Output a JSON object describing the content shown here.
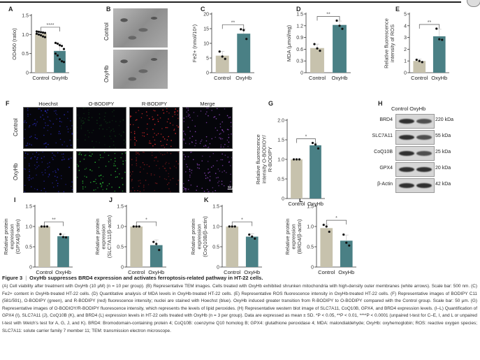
{
  "panels": {
    "A": "A",
    "B": "B",
    "C": "C",
    "D": "D",
    "E": "E",
    "F": "F",
    "G": "G",
    "H": "H",
    "I": "I",
    "J": "J",
    "K": "K",
    "L": "L"
  },
  "tem": {
    "row_labels": [
      "Control",
      "OxyHb"
    ]
  },
  "fluorescence": {
    "columns": [
      "Hoechst",
      "O-BODIPY",
      "R-BODIPY",
      "Merge"
    ],
    "row_labels": [
      "Control",
      "OxyHb"
    ],
    "scale_bar": "50 μm",
    "colors": [
      "#3a3aff",
      "#2fcf3a",
      "#ff3030",
      "#c060ff"
    ]
  },
  "western": {
    "header": "Control OxyHb",
    "rows": [
      {
        "protein": "BRD4",
        "kda": "220 kDa"
      },
      {
        "protein": "SLC7A11",
        "kda": "55 kDa"
      },
      {
        "protein": "CoQ10B",
        "kda": "25 kDa"
      },
      {
        "protein": "GPX4",
        "kda": "20 kDa"
      },
      {
        "protein": "β-Actin",
        "kda": "42 kDa"
      }
    ]
  },
  "colors": {
    "control": "#c7c2ad",
    "oxyhb": "#4a8085"
  },
  "chart_data": [
    {
      "id": "A",
      "type": "bar",
      "categories": [
        "Control",
        "OxyHb"
      ],
      "values": [
        1.02,
        0.57
      ],
      "errors": [
        0.05,
        0.2
      ],
      "points": [
        [
          1.08,
          1.07,
          1.06,
          1.05,
          1.04,
          1.02,
          1.0,
          0.98,
          0.95,
          0.93
        ],
        [
          0.78,
          0.76,
          0.72,
          0.7,
          0.62,
          0.5,
          0.45,
          0.35,
          0.3,
          0.28
        ]
      ],
      "ylim": [
        0,
        1.5
      ],
      "yticks": [
        "0",
        "0.5",
        "1.0",
        "1.5"
      ],
      "tickvals": [
        0,
        0.5,
        1.0,
        1.5
      ],
      "ylabel": [
        "OD450 (ratio)"
      ],
      "sig": "****"
    },
    {
      "id": "C",
      "type": "bar",
      "categories": [
        "Control",
        "OxyHb"
      ],
      "values": [
        5.8,
        13.3
      ],
      "errors": [
        1.5,
        1.6
      ],
      "points": [
        [
          7.2,
          5.5,
          4.7
        ],
        [
          14.8,
          14.5,
          11.5
        ]
      ],
      "ylim": [
        0,
        20
      ],
      "yticks": [
        "0",
        "5",
        "10",
        "15",
        "20"
      ],
      "tickvals": [
        0,
        5,
        10,
        15,
        20
      ],
      "ylabel": [
        "Fe2+ (nmol/10⁶)"
      ],
      "sig": "**"
    },
    {
      "id": "D",
      "type": "bar",
      "categories": [
        "Control",
        "OxyHb"
      ],
      "values": [
        0.63,
        1.22
      ],
      "errors": [
        0.1,
        0.1
      ],
      "points": [
        [
          0.73,
          0.62,
          0.56
        ],
        [
          1.33,
          1.2,
          1.12
        ]
      ],
      "ylim": [
        0,
        1.5
      ],
      "yticks": [
        "0",
        "0.3",
        "0.6",
        "0.9",
        "1.2",
        "1.5"
      ],
      "tickvals": [
        0,
        0.3,
        0.6,
        0.9,
        1.2,
        1.5
      ],
      "ylabel": [
        "MDA (μmol/mg)"
      ],
      "sig": "**"
    },
    {
      "id": "E",
      "type": "bar",
      "categories": [
        "Control",
        "OxyHb"
      ],
      "values": [
        1.0,
        3.1
      ],
      "errors": [
        0.15,
        0.6
      ],
      "points": [
        [
          1.1,
          1.0,
          0.9
        ],
        [
          3.75,
          2.85,
          2.8
        ]
      ],
      "ylim": [
        0,
        5
      ],
      "yticks": [
        "0",
        "1",
        "2",
        "3",
        "4",
        "5"
      ],
      "tickvals": [
        0,
        1,
        2,
        3,
        4,
        5
      ],
      "ylabel": [
        "Relative fluorescence",
        "intensity of ROS"
      ],
      "sig": "**"
    },
    {
      "id": "G",
      "type": "bar",
      "categories": [
        "Control",
        "OxyHb"
      ],
      "values": [
        1.0,
        1.36
      ],
      "errors": [
        0.01,
        0.06
      ],
      "points": [
        [
          1.0,
          1.0,
          1.0
        ],
        [
          1.42,
          1.38,
          1.28
        ]
      ],
      "ylim": [
        0,
        2.0
      ],
      "yticks": [
        "0",
        "0.5",
        "1.0",
        "1.5",
        "2.0"
      ],
      "tickvals": [
        0,
        0.5,
        1.0,
        1.5,
        2.0
      ],
      "ylabel": [
        "Relative fluorescence",
        "intensity O-BODIOY/",
        "R-BODIPY"
      ],
      "sig": "*"
    },
    {
      "id": "I",
      "type": "bar",
      "categories": [
        "Control",
        "OxyHb"
      ],
      "values": [
        1.0,
        0.76
      ],
      "errors": [
        0.01,
        0.05
      ],
      "points": [
        [
          1.0,
          1.0,
          1.0
        ],
        [
          0.81,
          0.74,
          0.73
        ]
      ],
      "ylim": [
        0,
        1.5
      ],
      "yticks": [
        "0",
        "0.5",
        "1.0",
        "1.5"
      ],
      "tickvals": [
        0,
        0.5,
        1.0,
        1.5
      ],
      "ylabel": [
        "Relative protein",
        "expression",
        "(GPX4/β-actin)"
      ],
      "sig": "**"
    },
    {
      "id": "J",
      "type": "bar",
      "categories": [
        "Control",
        "OxyHb"
      ],
      "values": [
        1.0,
        0.54
      ],
      "errors": [
        0.01,
        0.13
      ],
      "points": [
        [
          1.0,
          1.0,
          1.0
        ],
        [
          0.62,
          0.57,
          0.42
        ]
      ],
      "ylim": [
        0,
        1.5
      ],
      "yticks": [
        "0",
        "0.5",
        "1.0",
        "1.5"
      ],
      "tickvals": [
        0,
        0.5,
        1.0,
        1.5
      ],
      "ylabel": [
        "Relative protein",
        "expression",
        "(SLC7A11/β-actin)"
      ],
      "sig": "*"
    },
    {
      "id": "K",
      "type": "bar",
      "categories": [
        "Control",
        "OxyHb"
      ],
      "values": [
        1.0,
        0.75
      ],
      "errors": [
        0.01,
        0.07
      ],
      "points": [
        [
          1.0,
          1.0,
          1.0
        ],
        [
          0.8,
          0.75,
          0.7
        ]
      ],
      "ylim": [
        0,
        1.5
      ],
      "yticks": [
        "0",
        "0.5",
        "1.0",
        "1.5"
      ],
      "tickvals": [
        0,
        0.5,
        1.0,
        1.5
      ],
      "ylabel": [
        "Relative protein",
        "expression",
        "(CoQ10B/β-actin)"
      ],
      "sig": "*"
    },
    {
      "id": "L",
      "type": "bar",
      "categories": [
        "Control",
        "OxyHb"
      ],
      "values": [
        0.96,
        0.65
      ],
      "errors": [
        0.09,
        0.14
      ],
      "points": [
        [
          1.04,
          1.0,
          0.87
        ],
        [
          0.8,
          0.6,
          0.53
        ]
      ],
      "ylim": [
        0,
        1.5
      ],
      "yticks": [
        "0",
        "0.5",
        "1.0",
        "1.5"
      ],
      "tickvals": [
        0,
        0.5,
        1.0,
        1.5
      ],
      "ylabel": [
        "Relative protein",
        "expression",
        "(BRD4/β-actin)"
      ],
      "sig": "*"
    }
  ],
  "caption": {
    "figure_number": "Figure 3",
    "title": "OxyHb suppresses BRD4 expression and activates ferroptosis-related pathway in HT-22 cells.",
    "text": "(A) Cell viability after treatment with OxyHb (10 μM) (n = 10 per group). (B) Representative TEM images. Cells treated with OxyHb exhibited shrunken mitochondria with high-density outer membranes (white arrows). Scale bar: 500 nm. (C) Fe2+ content in OxyHb-treated HT-22 cells. (D) Quantitative analysis of MDA levels in OxyHb-treated HT-22 cells. (E) Representative ROS fluorescence intensity in OxyHb-treated HT-22 cells. (F) Representative images of BODIPY C11 (581/591), O-BODIPY (green), and R-BODIPY (red) fluorescence intensity; nuclei are stained with Hoechst (blue). OxyHb induced greater transition from R-BODIPY to O-BODIPY compared with the Control group. Scale bar: 50 μm. (G) Representative images of O-BODIOY/R-BODIPY fluorescence intensity, which represents the levels of lipid peroxides. (H) Representative western blot image of SLC7A11, CoQ10B, GPX4, and BRD4 expression levels. (I–L) Quantification of GPX4 (I), SLC7A11 (J), CoQ10B (K), and BRD4 (L) expression levels in HT-22 cells treated with OxyHb (n = 3 per group). Data are expressed as mean ± SD. *P < 0.05, **P < 0.01, ****P < 0.0001 (unpaired t-test for C–E, I, and L or unpaired t-test with Welch's test for A, G, J, and K). BRD4: Bromodomain-containing protein 4; CoQ10B: coenzyme Q10 homolog B; GPX4: glutathione peroxidase 4; MDA: malondialdehyde; OxyHb: oxyhemoglobin; ROS: reactive oxygen species; SLC7A11: solute carrier family 7 member 11; TEM: transmission electron microscope."
  }
}
